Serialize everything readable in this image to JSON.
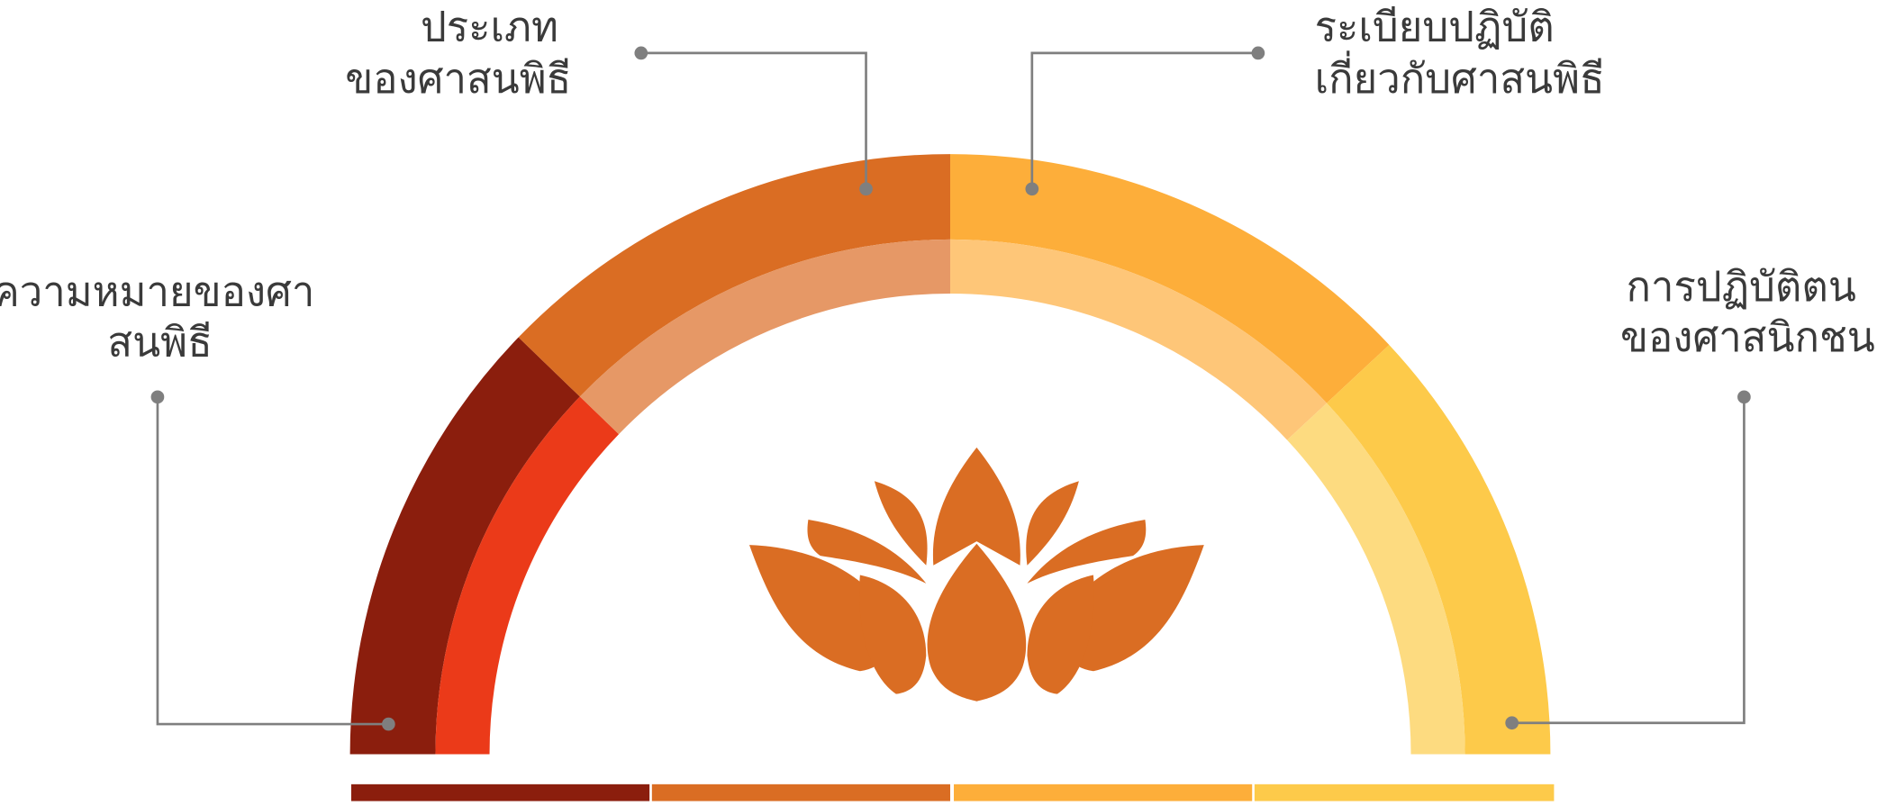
{
  "labels": [
    {
      "lines": [
        "ความหมายของศา",
        "สนพิธี"
      ]
    },
    {
      "lines": [
        "ประเภท",
        "ของศาสนพิธี"
      ]
    },
    {
      "lines": [
        "ระเบียบปฏิบัติ",
        "เกี่ยวกับศาสนพิธี"
      ]
    },
    {
      "lines": [
        "การปฏิบัติตน",
        "ของศาสนิกชน"
      ]
    }
  ]
}
